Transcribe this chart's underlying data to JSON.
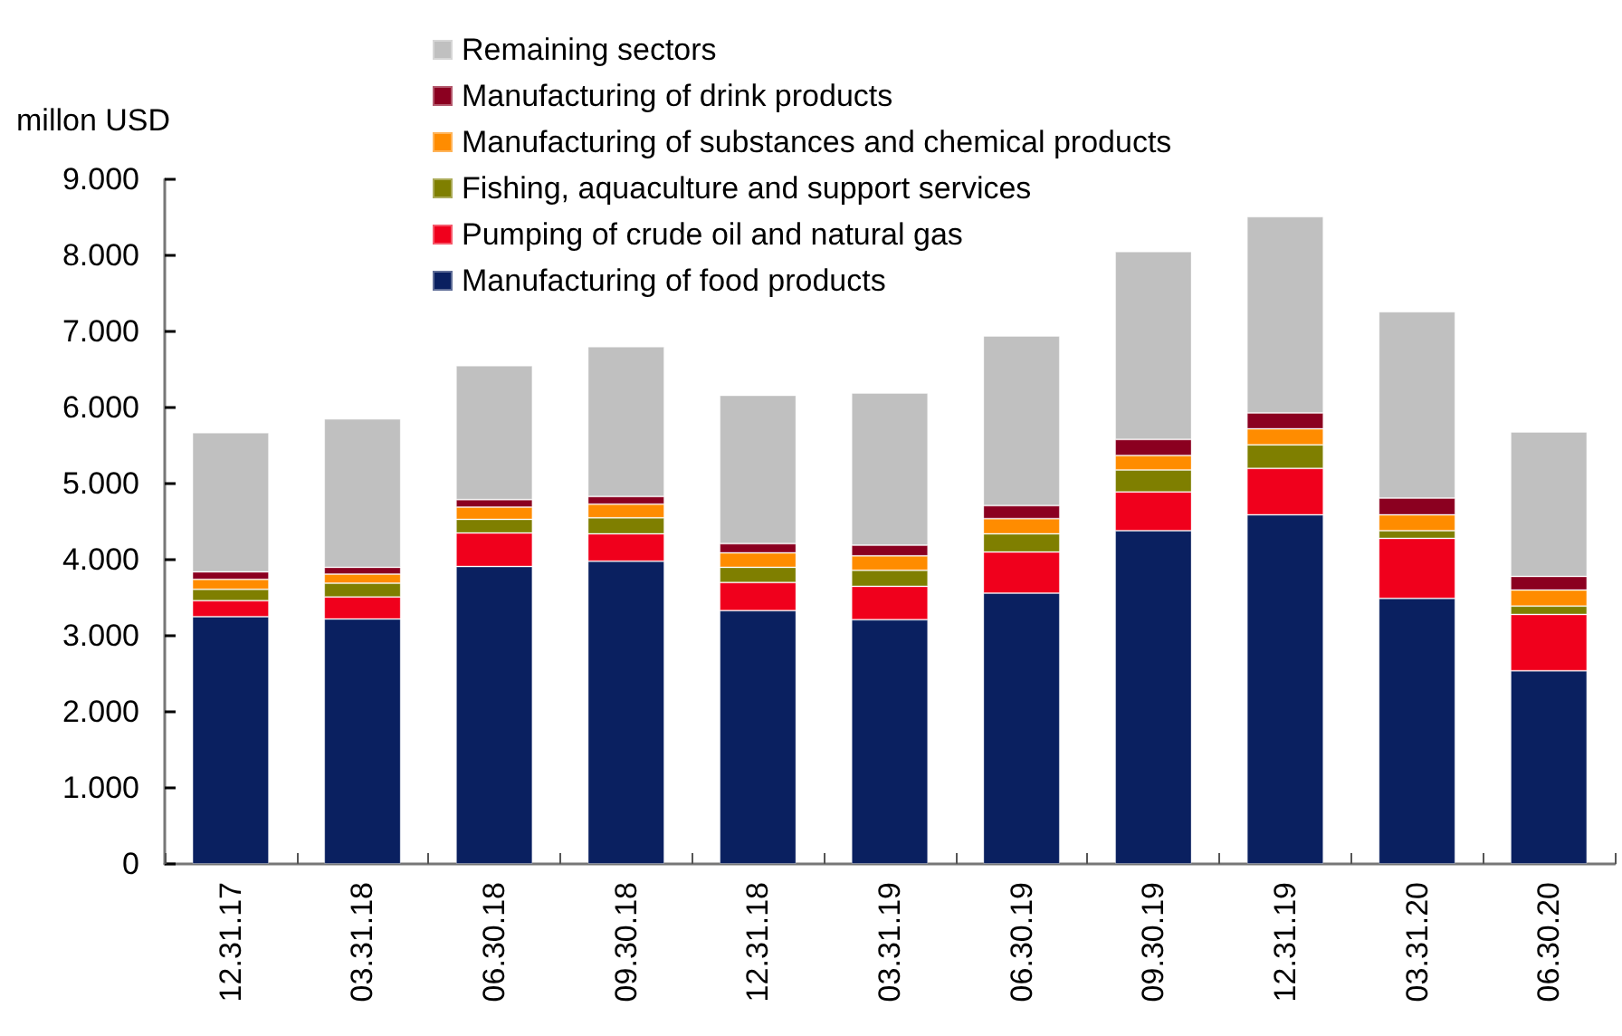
{
  "chart_data": {
    "type": "bar",
    "stacked": true,
    "ylabel": "millon USD",
    "categories": [
      "12.31.17",
      "03.31.18",
      "06.30.18",
      "09.30.18",
      "12.31.18",
      "03.31.19",
      "06.30.19",
      "09.30.19",
      "12.31.19",
      "03.31.20",
      "06.30.20"
    ],
    "series": [
      {
        "name": "Manufacturing of food products",
        "color": "#0a2060",
        "values": [
          3250,
          3220,
          3910,
          3980,
          3330,
          3210,
          3560,
          4380,
          4590,
          3490,
          2540
        ]
      },
      {
        "name": "Pumping of crude oil and natural gas",
        "color": "#f0001c",
        "values": [
          210,
          290,
          440,
          360,
          370,
          440,
          540,
          510,
          610,
          790,
          740
        ]
      },
      {
        "name": "Fishing, aquaculture and support services",
        "color": "#7f7f00",
        "values": [
          150,
          180,
          180,
          210,
          200,
          210,
          240,
          290,
          310,
          100,
          110
        ]
      },
      {
        "name": "Manufacturing of substances and chemical products",
        "color": "#ff8c00",
        "values": [
          130,
          120,
          160,
          180,
          190,
          190,
          200,
          190,
          210,
          210,
          210
        ]
      },
      {
        "name": "Manufacturing of drink products",
        "color": "#8b0020",
        "values": [
          100,
          90,
          100,
          100,
          120,
          140,
          170,
          210,
          210,
          220,
          180
        ]
      },
      {
        "name": "Remaining sectors",
        "color": "#c0c0c0",
        "values": [
          1830,
          1950,
          1760,
          1970,
          1950,
          2000,
          2230,
          2470,
          2580,
          2450,
          1900
        ]
      }
    ],
    "ylim": [
      0,
      9000
    ],
    "yticks": [
      {
        "value": 0,
        "label": "0"
      },
      {
        "value": 1000,
        "label": "1.000"
      },
      {
        "value": 2000,
        "label": "2.000"
      },
      {
        "value": 3000,
        "label": "3.000"
      },
      {
        "value": 4000,
        "label": "4.000"
      },
      {
        "value": 5000,
        "label": "5.000"
      },
      {
        "value": 6000,
        "label": "6.000"
      },
      {
        "value": 7000,
        "label": "7.000"
      },
      {
        "value": 8000,
        "label": "8.000"
      },
      {
        "value": 9000,
        "label": "9.000"
      }
    ],
    "grid": false,
    "legend": "top"
  }
}
